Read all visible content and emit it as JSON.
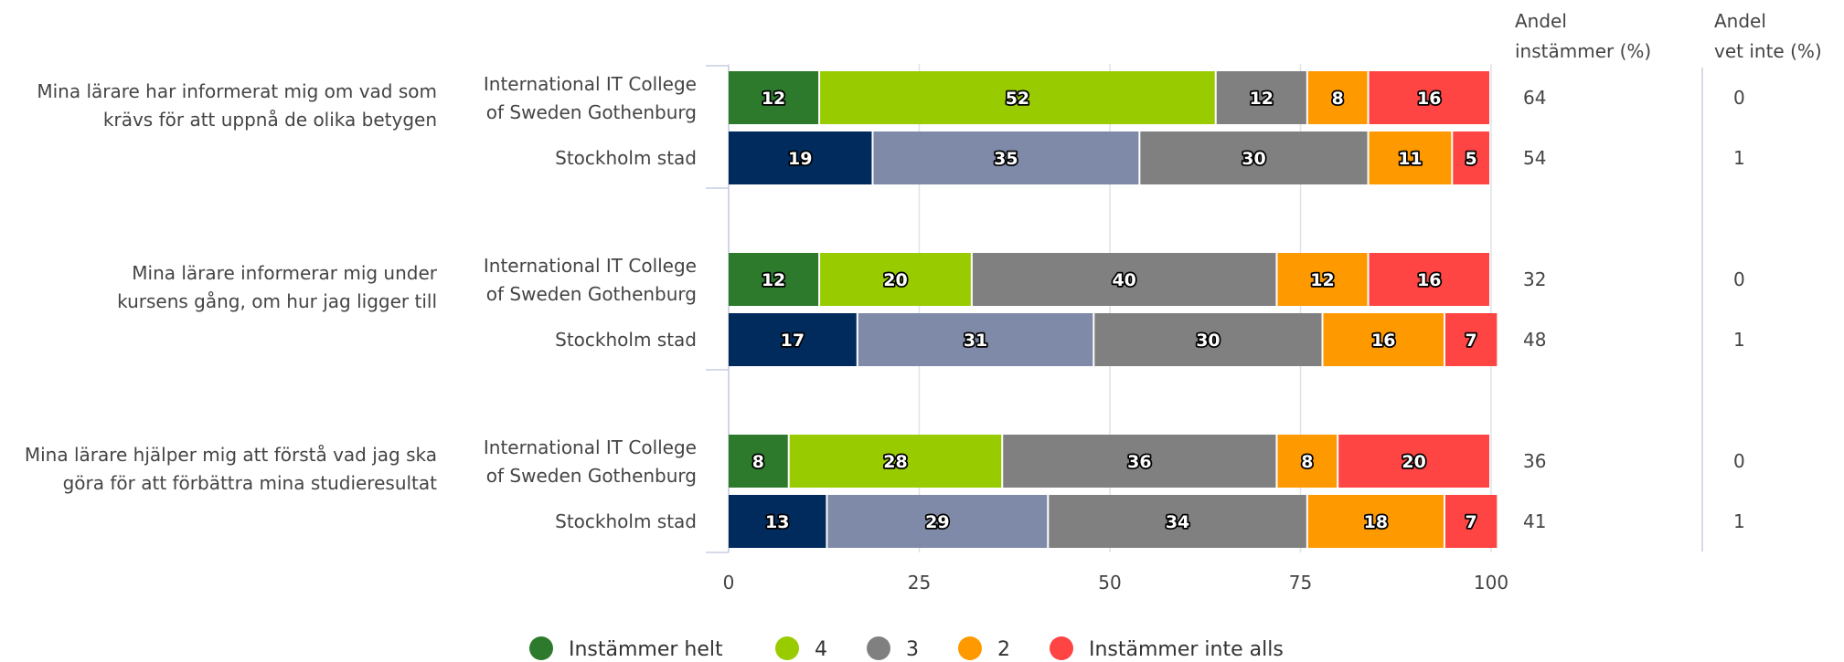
{
  "chart_data": {
    "type": "bar",
    "orientation": "horizontal",
    "stacked": true,
    "xlim": [
      0,
      100
    ],
    "xticks": [
      "0",
      "25",
      "50",
      "75",
      "100"
    ],
    "grid": true,
    "legend_position": "bottom",
    "column_headers": {
      "agree": [
        "Andel",
        "instämmer (%)"
      ],
      "dont_know": [
        "Andel",
        "vet inte (%)"
      ]
    },
    "legend": [
      {
        "name": "Instämmer helt",
        "color": "#2d7a2d"
      },
      {
        "name": "4",
        "color": "#99cc00"
      },
      {
        "name": "3",
        "color": "#808080"
      },
      {
        "name": "2",
        "color": "#ff9900"
      },
      {
        "name": "Instämmer inte alls",
        "color": "#ff4444"
      }
    ],
    "colors": {
      "school": [
        "#2d7a2d",
        "#99cc00",
        "#808080",
        "#ff9900",
        "#ff4444"
      ],
      "city": [
        "#002b5c",
        "#7f8aa8",
        "#808080",
        "#ff9900",
        "#ff4444"
      ]
    },
    "groups": [
      {
        "question": [
          "Mina lärare har informerat mig om vad som",
          "krävs för att uppnå de olika betygen"
        ],
        "rows": [
          {
            "name": [
              "International IT College",
              "of Sweden Gothenburg"
            ],
            "palette": "school",
            "values": [
              12,
              52,
              12,
              8,
              16
            ],
            "agree": "64",
            "dont_know": "0"
          },
          {
            "name": [
              "Stockholm stad"
            ],
            "palette": "city",
            "values": [
              19,
              35,
              30,
              11,
              5
            ],
            "agree": "54",
            "dont_know": "1"
          }
        ]
      },
      {
        "question": [
          "Mina lärare informerar mig under",
          "kursens gång, om hur jag ligger till"
        ],
        "rows": [
          {
            "name": [
              "International IT College",
              "of Sweden Gothenburg"
            ],
            "palette": "school",
            "values": [
              12,
              20,
              40,
              12,
              16
            ],
            "agree": "32",
            "dont_know": "0"
          },
          {
            "name": [
              "Stockholm stad"
            ],
            "palette": "city",
            "values": [
              17,
              31,
              30,
              16,
              7
            ],
            "agree": "48",
            "dont_know": "1"
          }
        ]
      },
      {
        "question": [
          "Mina lärare hjälper mig att förstå vad jag ska",
          "göra för att förbättra mina studieresultat"
        ],
        "rows": [
          {
            "name": [
              "International IT College",
              "of Sweden Gothenburg"
            ],
            "palette": "school",
            "values": [
              8,
              28,
              36,
              8,
              20
            ],
            "agree": "36",
            "dont_know": "0"
          },
          {
            "name": [
              "Stockholm stad"
            ],
            "palette": "city",
            "values": [
              13,
              29,
              34,
              18,
              7
            ],
            "agree": "41",
            "dont_know": "1"
          }
        ]
      }
    ]
  }
}
